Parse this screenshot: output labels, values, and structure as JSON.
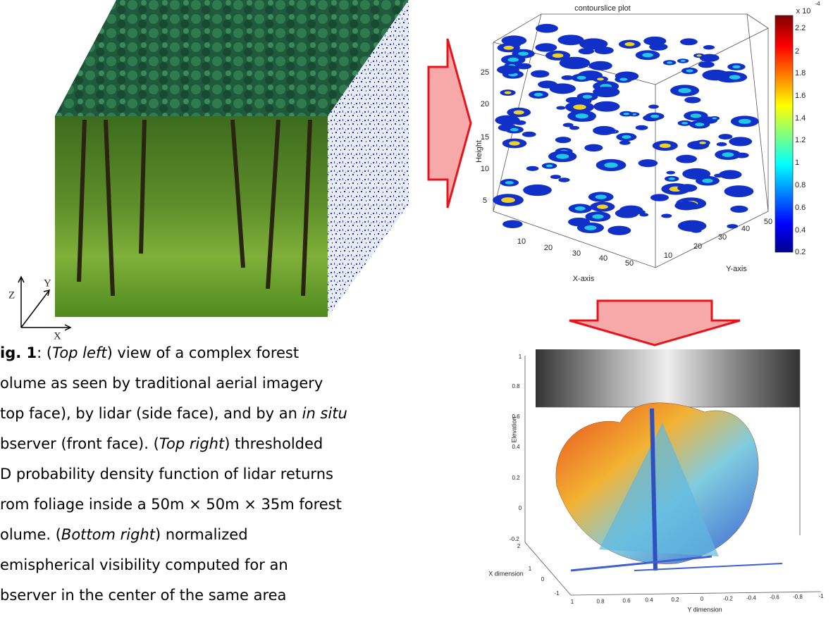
{
  "figure": {
    "axes_glyph": {
      "z": "Z",
      "y": "Y",
      "x": "X"
    },
    "contourslice": {
      "title": "contourslice plot",
      "z_label": "Height",
      "z_ticks": [
        "25",
        "20",
        "15",
        "10",
        "5"
      ],
      "x_label": "X-axis",
      "x_ticks": [
        "10",
        "20",
        "30",
        "40",
        "50"
      ],
      "y_label": "Y-axis",
      "y_ticks": [
        "10",
        "20",
        "30",
        "40",
        "50"
      ],
      "colorbar_exponent": "x 10",
      "colorbar_exponent_power": "-4",
      "colorbar_ticks": [
        "2.2",
        "2",
        "1.8",
        "1.6",
        "1.4",
        "1.2",
        "1",
        "0.8",
        "0.6",
        "0.4",
        "0.2"
      ]
    },
    "visibility": {
      "z_label": "Elevation",
      "z_ticks": [
        "1",
        "0.8",
        "0.6",
        "0.4",
        "0.2",
        "0",
        "-0.2"
      ],
      "x_label": "X dimension",
      "x_ticks": [
        "2",
        "1",
        "0",
        "-1"
      ],
      "y_label": "Y dimension",
      "y_ticks": [
        "1",
        "0.8",
        "0.6",
        "0.4",
        "0.2",
        "0",
        "-0.2",
        "-0.4",
        "-0.6",
        "-0.8",
        "-1"
      ]
    }
  },
  "caption": {
    "lines": [
      [
        {
          "text": "ig. 1",
          "bold": true
        },
        {
          "text": ": ("
        },
        {
          "text": "Top left",
          "italic": true
        },
        {
          "text": ") view of a complex forest"
        }
      ],
      [
        {
          "text": "olume as seen by traditional aerial imagery"
        }
      ],
      [
        {
          "text": "top face), by lidar (side face), and by an "
        },
        {
          "text": "in situ",
          "italic": true
        }
      ],
      [
        {
          "text": "bserver (front face).   ("
        },
        {
          "text": "Top right",
          "italic": true
        },
        {
          "text": ") thresholded"
        }
      ],
      [
        {
          "text": "D probability density function of lidar returns"
        }
      ],
      [
        {
          "text": "rom foliage inside a 50m × 50m × 35m forest"
        }
      ],
      [
        {
          "text": "olume.  ("
        },
        {
          "text": "Bottom right",
          "italic": true
        },
        {
          "text": ") normalized"
        }
      ],
      [
        {
          "text": "emispherical visibility computed for an"
        }
      ],
      [
        {
          "text": "bserver in the center of the same area"
        }
      ]
    ]
  }
}
